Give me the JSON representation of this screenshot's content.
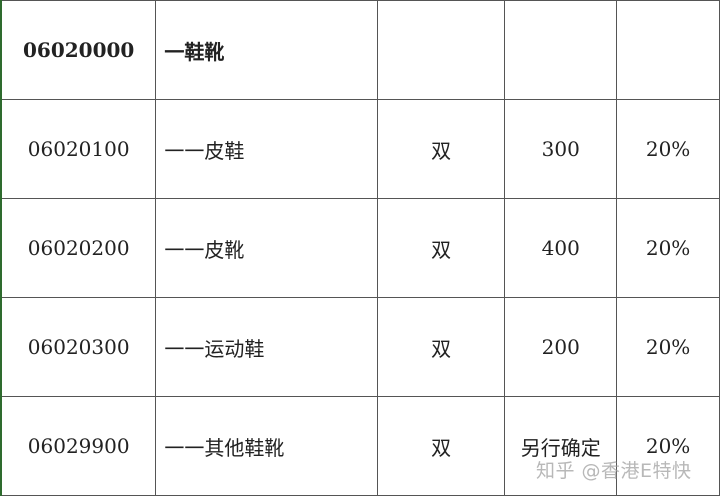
{
  "table": {
    "rows": [
      {
        "code": "06020000",
        "name": "一鞋靴",
        "unit": "",
        "price": "",
        "rate": "",
        "bold": true
      },
      {
        "code": "06020100",
        "name": "一一皮鞋",
        "unit": "双",
        "price": "300",
        "rate": "20%"
      },
      {
        "code": "06020200",
        "name": "一一皮靴",
        "unit": "双",
        "price": "400",
        "rate": "20%"
      },
      {
        "code": "06020300",
        "name": "一一运动鞋",
        "unit": "双",
        "price": "200",
        "rate": "20%"
      },
      {
        "code": "06029900",
        "name": "一一其他鞋靴",
        "unit": "双",
        "price": "另行确定",
        "rate": "20%"
      }
    ]
  },
  "watermark": "知乎 @香港E特快",
  "colors": {
    "border": "#555555",
    "left_edge": "#2e6b2e"
  }
}
